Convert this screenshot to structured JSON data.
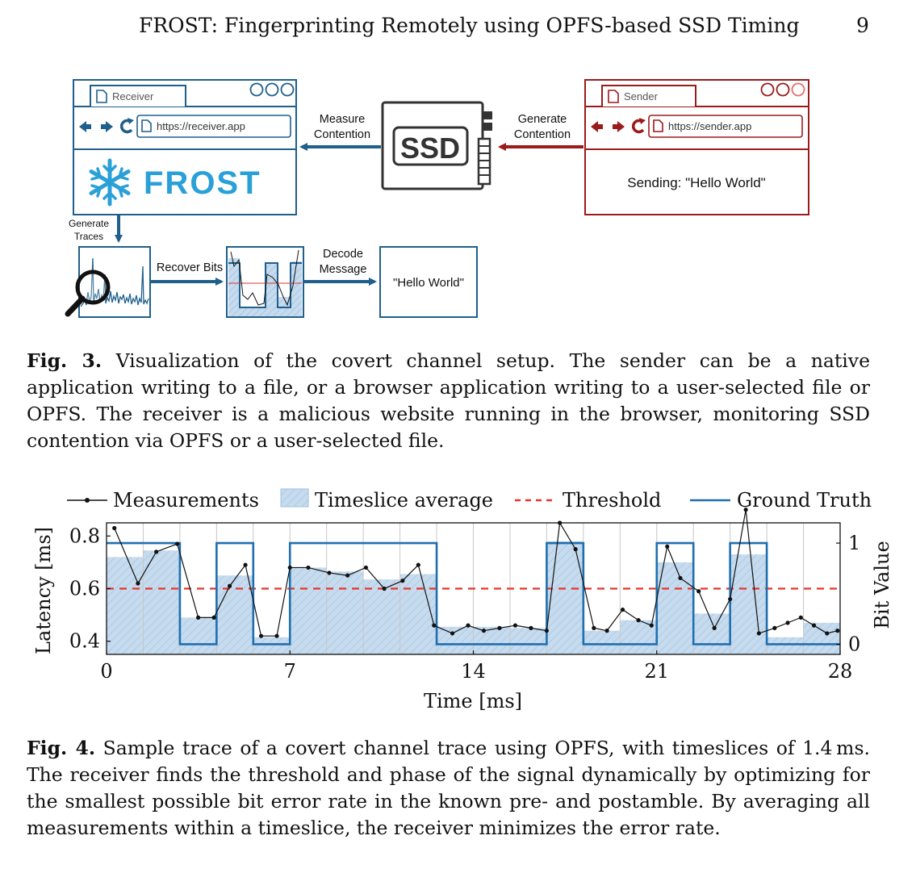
{
  "header": {
    "title": "FROST: Fingerprinting Remotely using OPFS-based SSD Timing",
    "page_number": "9"
  },
  "figure3": {
    "receiver": {
      "tab_label": "Receiver",
      "url": "https://receiver.app",
      "logo_text": "FROST"
    },
    "sender": {
      "tab_label": "Sender",
      "url": "https://sender.app",
      "message": "Sending: \"Hello World\""
    },
    "ssd_label": "SSD",
    "arrow_measure": [
      "Measure",
      "Contention"
    ],
    "arrow_generate_contention": [
      "Generate",
      "Contention"
    ],
    "arrow_generate_traces": [
      "Generate",
      "Traces"
    ],
    "arrow_recover_bits": "Recover Bits",
    "arrow_decode": [
      "Decode",
      "Message"
    ],
    "decoded_message": "\"Hello World\"",
    "colors": {
      "receiver": "#1f5f8b",
      "sender": "#9b1b1b",
      "ssd": "#333333"
    },
    "caption_label": "Fig. 3.",
    "caption_text": "Visualization of the covert channel setup. The sender can be a native application writing to a file, or a browser application writing to a user-selected file or OPFS. The receiver is a malicious website running in the browser, monitoring SSD contention via OPFS or a user-selected file."
  },
  "figure4": {
    "caption_label": "Fig. 4.",
    "caption_text": "Sample trace of a covert channel trace using OPFS, with timeslices of 1.4 ms. The receiver finds the threshold and phase of the signal dynamically by optimizing for the smallest possible bit error rate in the known pre- and postamble. By averaging all measurements within a timeslice, the receiver minimizes the error rate."
  },
  "chart_data": {
    "type": "line",
    "title": "",
    "xlabel": "Time [ms]",
    "ylabel": "Latency [ms]",
    "y2label": "Bit Value",
    "xlim": [
      0,
      28
    ],
    "ylim": [
      0.35,
      0.85
    ],
    "y2lim": [
      -0.1,
      1.2
    ],
    "xticks": [
      0,
      7,
      14,
      21,
      28
    ],
    "yticks": [
      0.4,
      0.6,
      0.8
    ],
    "y2ticks": [
      0,
      1
    ],
    "grid": "vertical",
    "legend_placement": "top",
    "legend": [
      "Measurements",
      "Timeslice average",
      "Threshold",
      "Ground Truth"
    ],
    "threshold": 0.6,
    "timeslice_ms": 1.4,
    "timeslice_average": [
      0.72,
      0.745,
      0.49,
      0.65,
      0.415,
      0.68,
      0.665,
      0.635,
      0.655,
      0.455,
      0.455,
      0.45,
      0.78,
      0.44,
      0.48,
      0.7,
      0.505,
      0.73,
      0.415,
      0.47
    ],
    "ground_truth": [
      1,
      1,
      0,
      1,
      0,
      1,
      1,
      1,
      1,
      0,
      0,
      0,
      1,
      0,
      0,
      1,
      0,
      1,
      0,
      0
    ],
    "measurements": {
      "x": [
        0.3,
        1.2,
        1.9,
        2.7,
        3.5,
        4.1,
        4.7,
        5.3,
        5.9,
        6.5,
        7.0,
        7.7,
        8.5,
        9.2,
        9.9,
        10.6,
        11.3,
        11.9,
        12.5,
        13.2,
        13.8,
        14.4,
        15.0,
        15.6,
        16.2,
        16.8,
        17.3,
        17.9,
        18.6,
        19.1,
        19.7,
        20.3,
        20.8,
        21.4,
        21.9,
        22.6,
        23.2,
        23.8,
        24.4,
        24.9,
        25.5,
        26.0,
        26.5,
        27.0,
        27.5,
        27.9
      ],
      "y": [
        0.83,
        0.62,
        0.74,
        0.77,
        0.49,
        0.49,
        0.61,
        0.69,
        0.42,
        0.42,
        0.68,
        0.68,
        0.66,
        0.65,
        0.68,
        0.6,
        0.63,
        0.69,
        0.46,
        0.43,
        0.46,
        0.44,
        0.45,
        0.46,
        0.45,
        0.44,
        0.85,
        0.75,
        0.45,
        0.44,
        0.52,
        0.48,
        0.46,
        0.76,
        0.64,
        0.59,
        0.45,
        0.56,
        0.9,
        0.43,
        0.45,
        0.47,
        0.49,
        0.46,
        0.43,
        0.44
      ]
    }
  }
}
